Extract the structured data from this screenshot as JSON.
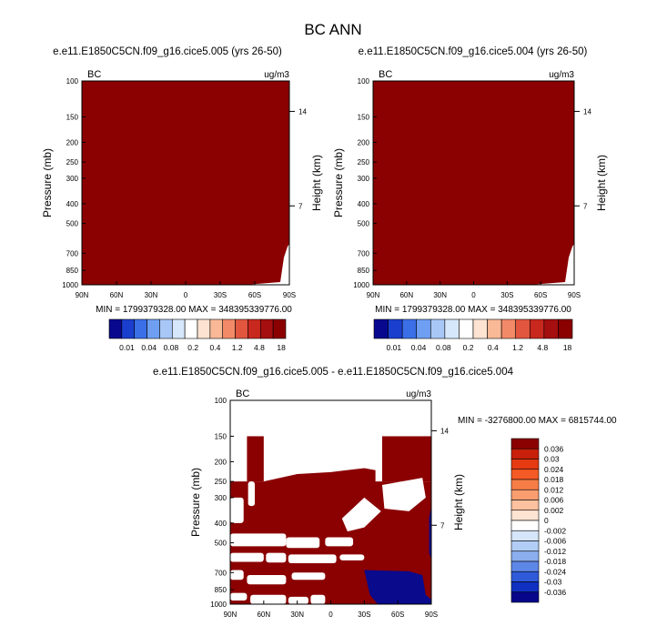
{
  "title": "BC ANN",
  "colors": {
    "dark_red": "#8b0000",
    "navy": "#0a0a8c",
    "white": "#ffffff"
  },
  "chart_data": [
    {
      "type": "heatmap",
      "id": "panel1",
      "title": "e.e11.E1850C5CN.f09_g16.cice5.005 (yrs 26-50)",
      "left_label": "BC",
      "right_label": "ug/m3",
      "ylabel": "Pressure (mb)",
      "ylabel_right": "Height (km)",
      "y_ticks": [
        "100",
        "150",
        "200",
        "250",
        "300",
        "400",
        "500",
        "700",
        "850",
        "1000"
      ],
      "y_tick_values": [
        100,
        150,
        200,
        250,
        300,
        400,
        500,
        700,
        850,
        1000
      ],
      "height_ticks": [
        "14",
        "7"
      ],
      "height_tick_pressures": [
        141,
        410
      ],
      "x_ticks": [
        "90N",
        "60N",
        "30N",
        "0",
        "30S",
        "60S",
        "90S"
      ],
      "x_tick_values": [
        90,
        60,
        30,
        0,
        -30,
        -60,
        -90
      ],
      "xlim": [
        90,
        -90
      ],
      "ylim": [
        100,
        1000
      ],
      "fill": "uniform dark red (all values above top contour level)",
      "stats": "MIN = 1799379328.00  MAX = 348395339776.00",
      "colorbar": {
        "orientation": "horizontal",
        "labels": [
          "0.01",
          "0.04",
          "0.08",
          "0.2",
          "0.4",
          "1.2",
          "4.8",
          "18"
        ],
        "colors": [
          "#08088e",
          "#1a3fcf",
          "#3a6fe8",
          "#6e9ff2",
          "#a8c7f7",
          "#d6e7fb",
          "#ffffff",
          "#fde3d2",
          "#f9b896",
          "#f28a67",
          "#e2563f",
          "#c9281e",
          "#a50f0f",
          "#8b0000"
        ]
      }
    },
    {
      "type": "heatmap",
      "id": "panel2",
      "title": "e.e11.E1850C5CN.f09_g16.cice5.004 (yrs 26-50)",
      "left_label": "BC",
      "right_label": "ug/m3",
      "ylabel": "Pressure (mb)",
      "ylabel_right": "Height (km)",
      "y_ticks": [
        "100",
        "150",
        "200",
        "250",
        "300",
        "400",
        "500",
        "700",
        "850",
        "1000"
      ],
      "y_tick_values": [
        100,
        150,
        200,
        250,
        300,
        400,
        500,
        700,
        850,
        1000
      ],
      "height_ticks": [
        "14",
        "7"
      ],
      "height_tick_pressures": [
        141,
        410
      ],
      "x_ticks": [
        "90N",
        "60N",
        "30N",
        "0",
        "30S",
        "60S",
        "90S"
      ],
      "x_tick_values": [
        90,
        60,
        30,
        0,
        -30,
        -60,
        -90
      ],
      "xlim": [
        90,
        -90
      ],
      "ylim": [
        100,
        1000
      ],
      "fill": "uniform dark red (all values above top contour level)",
      "stats": "MIN = 1799379328.00  MAX = 348395339776.00",
      "colorbar": {
        "orientation": "horizontal",
        "labels": [
          "0.01",
          "0.04",
          "0.08",
          "0.2",
          "0.4",
          "1.2",
          "4.8",
          "18"
        ],
        "colors": [
          "#08088e",
          "#1a3fcf",
          "#3a6fe8",
          "#6e9ff2",
          "#a8c7f7",
          "#d6e7fb",
          "#ffffff",
          "#fde3d2",
          "#f9b896",
          "#f28a67",
          "#e2563f",
          "#c9281e",
          "#a50f0f",
          "#8b0000"
        ]
      }
    },
    {
      "type": "heatmap",
      "id": "diff",
      "title": "e.e11.E1850C5CN.f09_g16.cice5.005 - e.e11.E1850C5CN.f09_g16.cice5.004",
      "left_label": "BC",
      "right_label": "ug/m3",
      "ylabel": "Pressure (mb)",
      "ylabel_right": "Height (km)",
      "y_ticks": [
        "100",
        "150",
        "200",
        "250",
        "300",
        "400",
        "500",
        "700",
        "850",
        "1000"
      ],
      "y_tick_values": [
        100,
        150,
        200,
        250,
        300,
        400,
        500,
        700,
        850,
        1000
      ],
      "height_ticks": [
        "14",
        "7"
      ],
      "height_tick_pressures": [
        141,
        410
      ],
      "x_ticks": [
        "90N",
        "60N",
        "30N",
        "0",
        "30S",
        "60S",
        "90S"
      ],
      "x_tick_values": [
        90,
        60,
        30,
        0,
        -30,
        -60,
        -90
      ],
      "xlim": [
        90,
        -90
      ],
      "ylim": [
        100,
        1000
      ],
      "fill": "mostly dark red (>0.036) with white gaps and a navy region (<-0.036) near 60S-90S below 700 mb",
      "stats": "MIN = -3276800.00  MAX = 6815744.00",
      "colorbar": {
        "orientation": "vertical",
        "labels": [
          "0.036",
          "0.03",
          "0.024",
          "0.018",
          "0.012",
          "0.006",
          "0.002",
          "0",
          "-0.002",
          "-0.006",
          "-0.012",
          "-0.018",
          "-0.024",
          "-0.03",
          "-0.036"
        ],
        "colors": [
          "#8b0000",
          "#c8200a",
          "#e53a12",
          "#f45a26",
          "#f77d47",
          "#fa9e70",
          "#fcc19e",
          "#fee4d2",
          "#ffffff",
          "#d6e6fa",
          "#b2cdf5",
          "#8aaeee",
          "#5d87e6",
          "#2f5ad9",
          "#1030c2",
          "#06068a"
        ]
      }
    }
  ]
}
